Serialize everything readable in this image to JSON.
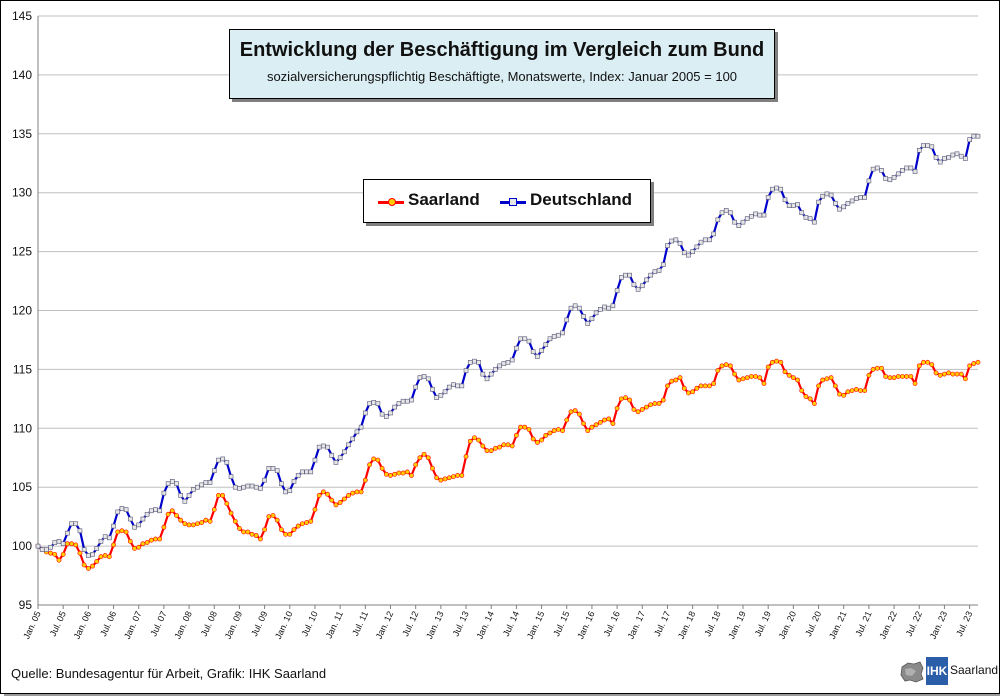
{
  "title": "Entwicklung der Beschäftigung im Vergleich zum Bund",
  "subtitle": "sozialversicherungspflichtig Beschäftigte, Monatswerte, Index: Januar 2005 = 100",
  "source": "Quelle: Bundesagentur für Arbeit, Grafik: IHK Saarland",
  "logo": {
    "abbr": "IHK",
    "name": "Saarland"
  },
  "colors": {
    "saarland_line": "#ff0000",
    "saarland_marker": "#ffcc00",
    "deutschland_line": "#0000cc",
    "deutschland_marker": "#e6e6e6",
    "grid": "#c0c0c0"
  },
  "chart_data": {
    "type": "line",
    "title": "Entwicklung der Beschäftigung im Vergleich zum Bund",
    "subtitle": "sozialversicherungspflichtig Beschäftigte, Monatswerte, Index: Januar 2005 = 100",
    "xlabel": "",
    "ylabel": "",
    "ylim": [
      95,
      145
    ],
    "yticks": [
      95,
      100,
      105,
      110,
      115,
      120,
      125,
      130,
      135,
      140,
      145
    ],
    "x_start": "Jan. 05",
    "x_end": "Sep. 23",
    "xtick_labels": [
      "Jan. 05",
      "Jul. 05",
      "Jan. 06",
      "Jul. 06",
      "Jan. 07",
      "Jul. 07",
      "Jan. 08",
      "Jul. 08",
      "Jan. 09",
      "Jul. 09",
      "Jan. 10",
      "Jul. 10",
      "Jan. 11",
      "Jul. 11",
      "Jan. 12",
      "Jul. 12",
      "Jan. 13",
      "Jul. 13",
      "Jan. 14",
      "Jul. 14",
      "Jan. 15",
      "Jul. 15",
      "Jan. 16",
      "Jul. 16",
      "Jan. 17",
      "Jul. 17",
      "Jan. 18",
      "Jul. 18",
      "Jan. 19",
      "Jul. 19",
      "Jan. 20",
      "Jul. 20",
      "Jan. 21",
      "Jul. 21",
      "Jan. 22",
      "Jul. 22",
      "Jan. 23",
      "Jul. 23"
    ],
    "grid": true,
    "legend_position": "center-top",
    "series": [
      {
        "name": "Saarland",
        "values": [
          100.0,
          99.7,
          99.5,
          99.4,
          99.3,
          98.8,
          99.3,
          100.2,
          100.2,
          100.1,
          99.4,
          98.4,
          98.1,
          98.3,
          98.7,
          99.1,
          99.2,
          99.1,
          100.1,
          101.2,
          101.3,
          101.2,
          100.4,
          99.8,
          99.9,
          100.2,
          100.3,
          100.5,
          100.6,
          100.6,
          101.6,
          102.7,
          103.0,
          102.6,
          102.2,
          101.9,
          101.8,
          101.8,
          101.9,
          102.0,
          102.2,
          102.1,
          103.1,
          104.3,
          104.3,
          103.6,
          102.8,
          102.1,
          101.5,
          101.2,
          101.2,
          101.0,
          100.9,
          100.6,
          101.4,
          102.5,
          102.6,
          102.2,
          101.4,
          101.0,
          101.0,
          101.4,
          101.7,
          101.9,
          102.0,
          102.1,
          103.1,
          104.3,
          104.6,
          104.4,
          103.9,
          103.5,
          103.7,
          104.0,
          104.3,
          104.5,
          104.6,
          104.6,
          105.6,
          106.9,
          107.4,
          107.3,
          106.6,
          106.1,
          106.0,
          106.1,
          106.2,
          106.2,
          106.3,
          106.0,
          106.9,
          107.5,
          107.8,
          107.5,
          106.6,
          105.8,
          105.6,
          105.7,
          105.8,
          105.9,
          106.0,
          106.0,
          107.6,
          108.9,
          109.2,
          109.0,
          108.5,
          108.1,
          108.1,
          108.3,
          108.4,
          108.6,
          108.6,
          108.5,
          109.4,
          110.1,
          110.1,
          109.9,
          109.1,
          108.8,
          109.0,
          109.4,
          109.6,
          109.8,
          109.9,
          109.8,
          110.7,
          111.4,
          111.5,
          111.2,
          110.4,
          109.8,
          110.1,
          110.3,
          110.5,
          110.7,
          110.8,
          110.4,
          111.7,
          112.5,
          112.6,
          112.4,
          111.6,
          111.4,
          111.6,
          111.8,
          112.0,
          112.1,
          112.1,
          112.4,
          113.6,
          114.0,
          114.1,
          114.3,
          113.4,
          113.0,
          113.1,
          113.4,
          113.6,
          113.6,
          113.6,
          113.8,
          114.9,
          115.3,
          115.4,
          115.3,
          114.6,
          114.1,
          114.2,
          114.3,
          114.4,
          114.4,
          114.3,
          113.8,
          115.2,
          115.6,
          115.7,
          115.6,
          114.8,
          114.5,
          114.3,
          114.1,
          113.2,
          112.7,
          112.5,
          112.1,
          113.6,
          114.1,
          114.2,
          114.3,
          113.6,
          112.9,
          112.8,
          113.1,
          113.2,
          113.3,
          113.2,
          113.2,
          114.5,
          115.0,
          115.1,
          115.1,
          114.4,
          114.3,
          114.3,
          114.4,
          114.4,
          114.4,
          114.4,
          113.8,
          115.3,
          115.6,
          115.6,
          115.4,
          114.7,
          114.5,
          114.6,
          114.7,
          114.6,
          114.6,
          114.6,
          114.2,
          115.3,
          115.5,
          115.6
        ]
      },
      {
        "name": "Deutschland",
        "values": [
          100.0,
          99.7,
          99.7,
          99.9,
          100.3,
          100.4,
          100.2,
          101.1,
          101.9,
          101.9,
          101.3,
          99.7,
          99.2,
          99.3,
          99.8,
          100.4,
          100.8,
          100.7,
          101.7,
          102.9,
          103.2,
          103.1,
          102.3,
          101.6,
          101.8,
          102.3,
          102.7,
          103.0,
          103.1,
          103.0,
          104.5,
          105.3,
          105.5,
          105.3,
          104.3,
          103.8,
          104.3,
          104.8,
          105.0,
          105.2,
          105.4,
          105.4,
          106.4,
          107.3,
          107.4,
          107.1,
          105.9,
          105.0,
          104.9,
          105.0,
          105.1,
          105.1,
          105.0,
          104.9,
          105.6,
          106.6,
          106.6,
          106.4,
          105.3,
          104.6,
          104.7,
          105.5,
          106.0,
          106.3,
          106.3,
          106.3,
          107.3,
          108.4,
          108.5,
          108.4,
          107.7,
          107.1,
          107.5,
          108.0,
          108.6,
          109.1,
          109.7,
          110.1,
          111.3,
          112.1,
          112.2,
          112.1,
          111.2,
          111.0,
          111.3,
          111.8,
          112.1,
          112.3,
          112.3,
          112.4,
          113.5,
          114.3,
          114.4,
          114.2,
          113.3,
          112.6,
          112.8,
          113.1,
          113.5,
          113.7,
          113.6,
          113.6,
          114.9,
          115.6,
          115.7,
          115.6,
          114.6,
          114.2,
          114.6,
          115.0,
          115.3,
          115.5,
          115.6,
          115.8,
          116.8,
          117.6,
          117.6,
          117.4,
          116.5,
          116.1,
          116.6,
          117.1,
          117.6,
          117.8,
          117.9,
          118.1,
          119.2,
          120.2,
          120.4,
          120.2,
          119.5,
          118.9,
          119.3,
          119.8,
          120.1,
          120.3,
          120.2,
          120.4,
          121.7,
          122.8,
          123.0,
          123.0,
          122.2,
          121.8,
          122.1,
          122.6,
          123.0,
          123.3,
          123.4,
          123.9,
          125.5,
          125.9,
          126.0,
          125.7,
          124.9,
          124.7,
          125.0,
          125.4,
          125.8,
          126.0,
          126.0,
          126.5,
          127.7,
          128.3,
          128.5,
          128.3,
          127.5,
          127.2,
          127.5,
          127.8,
          128.0,
          128.2,
          128.1,
          128.1,
          129.6,
          130.3,
          130.4,
          130.3,
          129.4,
          128.9,
          128.9,
          129.0,
          128.3,
          127.9,
          127.8,
          127.5,
          129.2,
          129.7,
          129.9,
          129.8,
          129.1,
          128.6,
          128.8,
          129.1,
          129.3,
          129.5,
          129.6,
          129.6,
          131.0,
          132.0,
          132.1,
          131.9,
          131.2,
          131.1,
          131.3,
          131.6,
          131.9,
          132.1,
          132.1,
          131.8,
          133.6,
          134.0,
          134.0,
          133.9,
          133.0,
          132.6,
          132.9,
          133.0,
          133.2,
          133.3,
          133.1,
          132.9,
          134.5,
          134.8,
          134.8
        ]
      }
    ]
  }
}
